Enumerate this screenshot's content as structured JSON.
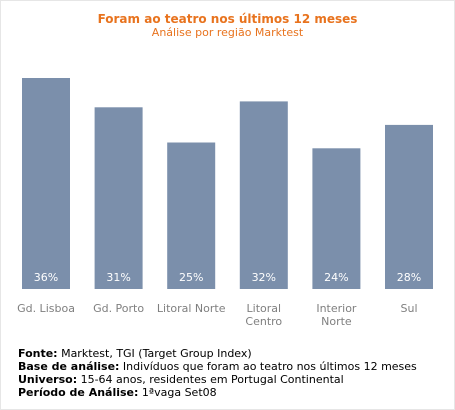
{
  "chart_data": {
    "type": "bar",
    "title": "Foram ao teatro nos últimos 12 meses",
    "subtitle": "Análise por região Marktest",
    "categories": [
      [
        "Gd. Lisboa"
      ],
      [
        "Gd. Porto"
      ],
      [
        "Litoral Norte"
      ],
      [
        "Litoral",
        "Centro"
      ],
      [
        "Interior",
        "Norte"
      ],
      [
        "Sul"
      ]
    ],
    "values": [
      36,
      31,
      25,
      32,
      24,
      28
    ],
    "value_labels": [
      "36%",
      "31%",
      "25%",
      "32%",
      "24%",
      "28%"
    ],
    "bar_color": "#7b8fab",
    "ylim": [
      0,
      40
    ],
    "grid": false,
    "legend": "none"
  },
  "notes": [
    {
      "label": "Fonte:",
      "text": " Marktest, TGI (Target Group Index)"
    },
    {
      "label": "Base de análise:",
      "text": " Indivíduos que foram ao teatro nos últimos 12 meses"
    },
    {
      "label": "Universo:",
      "text": " 15-64 anos, residentes em Portugal Continental"
    },
    {
      "label": "Período de Análise:",
      "text": " 1ªvaga Set08"
    }
  ]
}
